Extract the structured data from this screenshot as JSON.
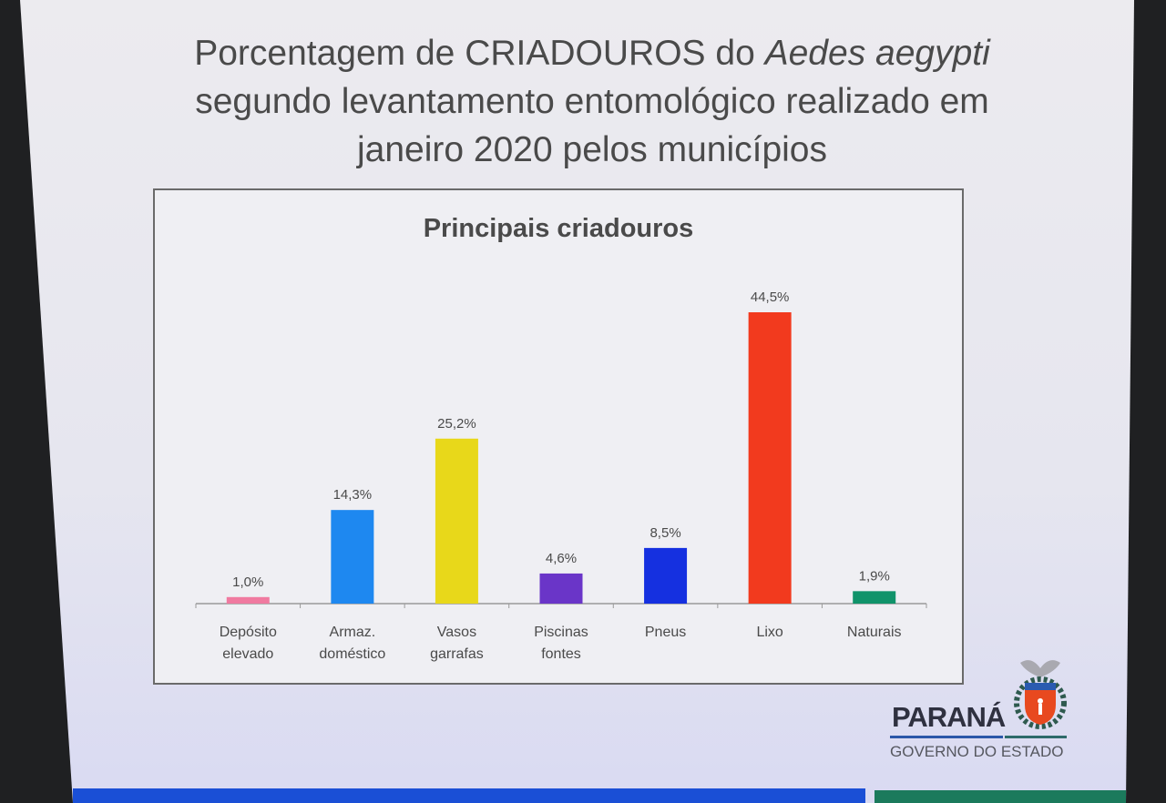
{
  "slide": {
    "title_line1_prefix": "Porcentagem de CRIADOUROS do ",
    "title_line1_italic": "Aedes aegypti",
    "title_line2": "segundo levantamento entomológico realizado em",
    "title_line3": "janeiro 2020 pelos municípios"
  },
  "chart_data": {
    "type": "bar",
    "title": "Principais criadouros",
    "categories": [
      [
        "Depósito",
        "elevado"
      ],
      [
        "Armaz.",
        "doméstico"
      ],
      [
        "Vasos",
        "garrafas"
      ],
      [
        "Piscinas",
        "fontes"
      ],
      [
        "Pneus"
      ],
      [
        "Lixo"
      ],
      [
        "Naturais"
      ]
    ],
    "values": [
      1.0,
      14.3,
      25.2,
      4.6,
      8.5,
      44.5,
      1.9
    ],
    "data_labels": [
      "1,0%",
      "14,3%",
      "25,2%",
      "4,6%",
      "8,5%",
      "44,5%",
      "1,9%"
    ],
    "colors": [
      "#f07aa0",
      "#1e88f0",
      "#e8d81a",
      "#6a35c8",
      "#1530e0",
      "#f23a1e",
      "#10936a"
    ],
    "unit": "%",
    "grid": false,
    "legend": "none"
  },
  "logo": {
    "name": "PARANÁ",
    "subtitle": "GOVERNO DO ESTADO"
  }
}
